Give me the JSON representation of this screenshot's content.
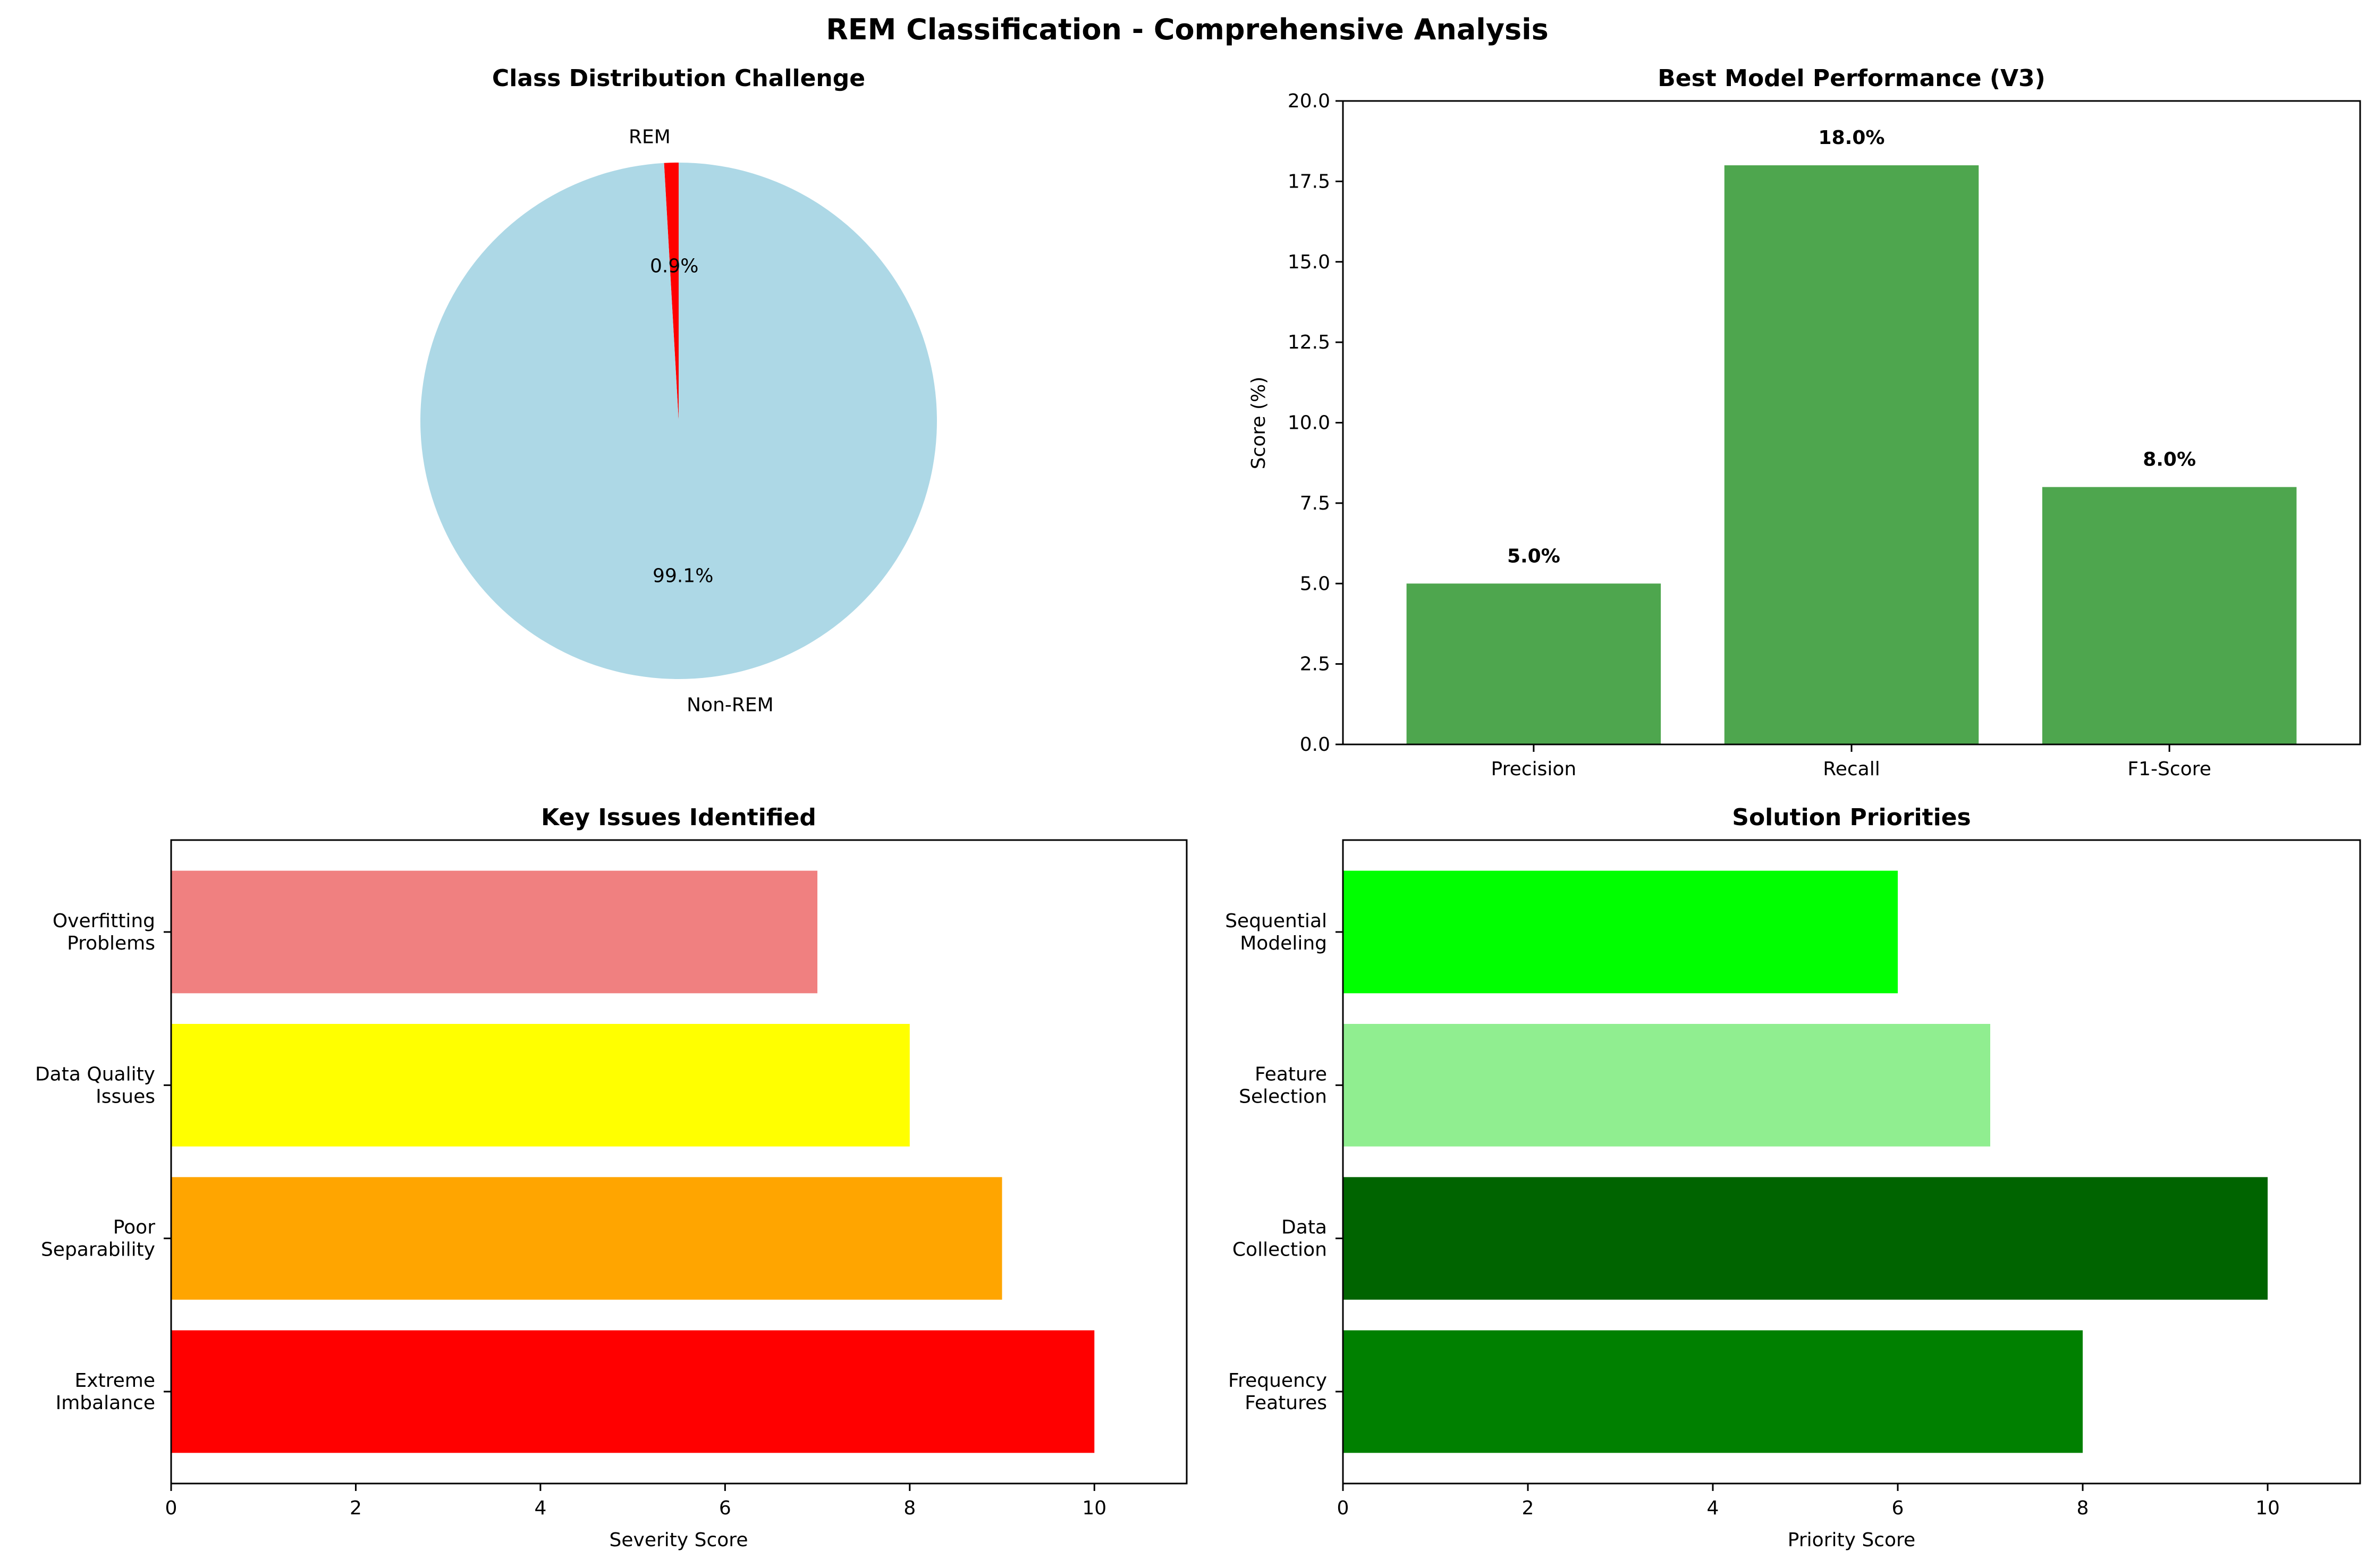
{
  "figure": {
    "title": "REM Classification - Comprehensive Analysis"
  },
  "chart_data": [
    {
      "type": "pie",
      "title": "Class Distribution Challenge",
      "labels": [
        "REM",
        "Non-REM"
      ],
      "values": [
        0.9,
        99.1
      ],
      "pct_labels": [
        "0.9%",
        "99.1%"
      ],
      "colors": [
        "#ff0000",
        "#add8e6"
      ],
      "start_angle_deg": 90
    },
    {
      "type": "bar",
      "title": "Best Model Performance (V3)",
      "categories": [
        "Precision",
        "Recall",
        "F1-Score"
      ],
      "values": [
        5.0,
        18.0,
        8.0
      ],
      "value_labels": [
        "5.0%",
        "18.0%",
        "8.0%"
      ],
      "xlabel": "",
      "ylabel": "Score (%)",
      "ylim": [
        0,
        20
      ],
      "yticks": [
        "0.0",
        "2.5",
        "5.0",
        "7.5",
        "10.0",
        "12.5",
        "15.0",
        "17.5",
        "20.0"
      ],
      "color": "#4ea64e"
    },
    {
      "type": "bar",
      "orientation": "horizontal",
      "title": "Key Issues Identified",
      "categories": [
        "Extreme\nImbalance",
        "Poor\nSeparability",
        "Data Quality\nIssues",
        "Overfitting\nProblems"
      ],
      "values": [
        10,
        9,
        8,
        7
      ],
      "colors": [
        "#ff0000",
        "#ffa500",
        "#ffff00",
        "#f08080"
      ],
      "xlabel": "Severity Score",
      "ylabel": "",
      "xlim": [
        0,
        11
      ],
      "xticks": [
        "0",
        "2",
        "4",
        "6",
        "8",
        "10"
      ]
    },
    {
      "type": "bar",
      "orientation": "horizontal",
      "title": "Solution Priorities",
      "categories": [
        "Frequency\nFeatures",
        "Data\nCollection",
        "Feature\nSelection",
        "Sequential\nModeling"
      ],
      "values": [
        8,
        10,
        7,
        6
      ],
      "colors": [
        "#008000",
        "#006400",
        "#90ee90",
        "#00ff00"
      ],
      "xlabel": "Priority Score",
      "ylabel": "",
      "xlim": [
        0,
        11
      ],
      "xticks": [
        "0",
        "2",
        "4",
        "6",
        "8",
        "10"
      ]
    }
  ]
}
